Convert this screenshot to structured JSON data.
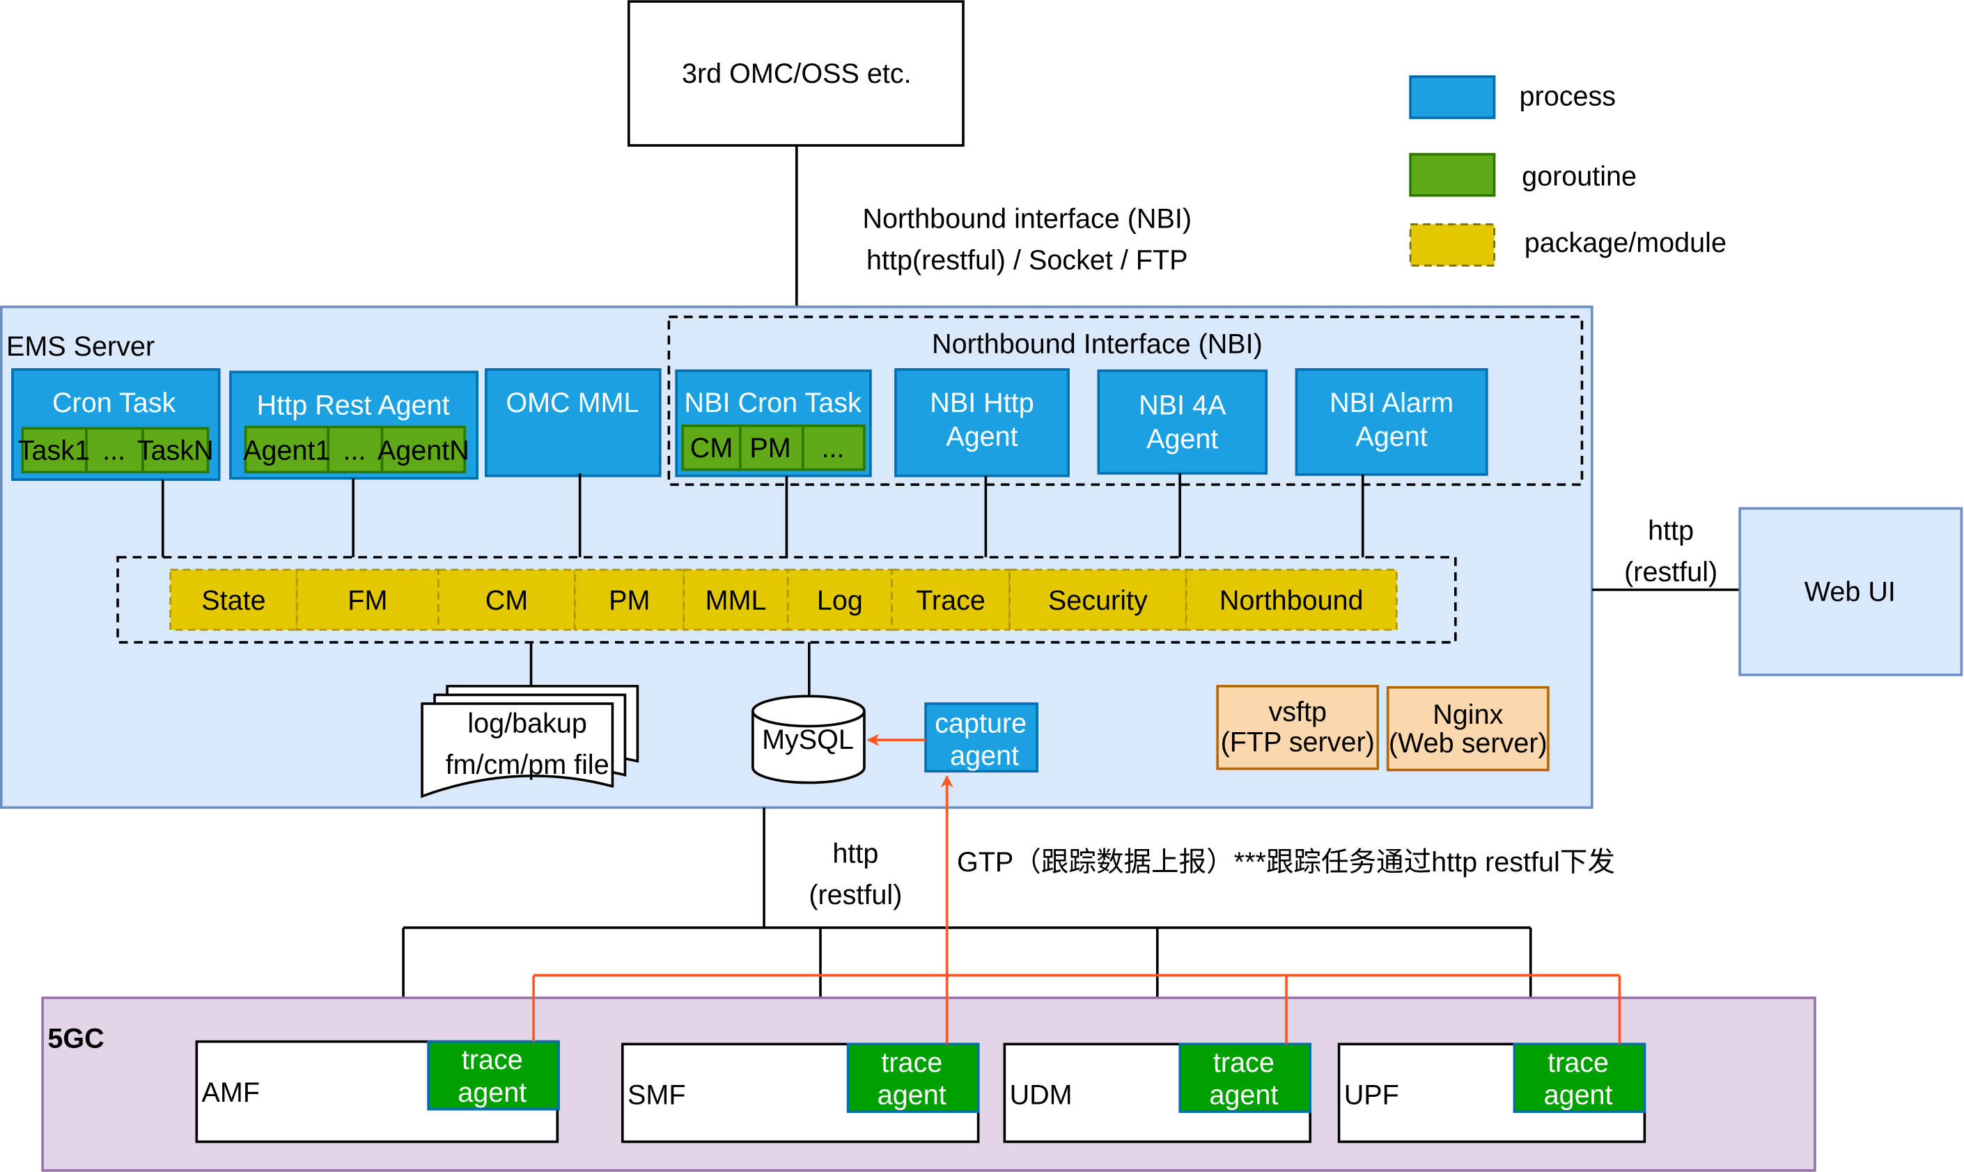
{
  "top": {
    "oss": "3rd OMC/OSS etc.",
    "nbi_line1": "Northbound interface (NBI)",
    "nbi_line2": "http(restful) / Socket / FTP"
  },
  "legend": [
    {
      "label": "process",
      "color": "#1ba1e2"
    },
    {
      "label": "goroutine",
      "color": "#60a917"
    },
    {
      "label": "package/module",
      "color": "#e3c800"
    }
  ],
  "ems": {
    "title": "EMS Server",
    "nbi_group": "Northbound Interface (NBI)",
    "cron": {
      "title": "Cron Task",
      "cells": [
        "Task1",
        "...",
        "TaskN"
      ]
    },
    "http": {
      "title": "Http Rest Agent",
      "cells": [
        "Agent1",
        "...",
        "AgentN"
      ]
    },
    "omc": "OMC MML",
    "nbicron": {
      "title": "NBI Cron Task",
      "cells": [
        "CM",
        "PM",
        "..."
      ]
    },
    "nbihttp": [
      "NBI Http",
      "Agent"
    ],
    "nbi4a": [
      "NBI 4A",
      "Agent"
    ],
    "nbialarm": [
      "NBI Alarm",
      "Agent"
    ],
    "modules": [
      "State",
      "FM",
      "CM",
      "PM",
      "MML",
      "Log",
      "Trace",
      "Security",
      "Northbound"
    ],
    "files": [
      "log/bakup",
      "fm/cm/pm file"
    ],
    "mysql": "MySQL",
    "capture": [
      "capture",
      "agent"
    ],
    "vsftp": [
      "vsftp",
      "(FTP server)"
    ],
    "nginx": [
      "Nginx",
      "(Web server)"
    ]
  },
  "webui": {
    "label": "Web UI",
    "link": [
      "http",
      "(restful)"
    ]
  },
  "south": {
    "link": [
      "http",
      "(restful)"
    ],
    "gtp": "GTP（跟踪数据上报）***跟踪任务通过http restful下发"
  },
  "fivegc": {
    "title": "5GC",
    "nfs": [
      {
        "name": "AMF",
        "agent": [
          "trace",
          "agent"
        ]
      },
      {
        "name": "SMF",
        "agent": [
          "trace",
          "agent"
        ]
      },
      {
        "name": "UDM",
        "agent": [
          "trace",
          "agent"
        ]
      },
      {
        "name": "UPF",
        "agent": [
          "trace",
          "agent"
        ]
      }
    ]
  }
}
